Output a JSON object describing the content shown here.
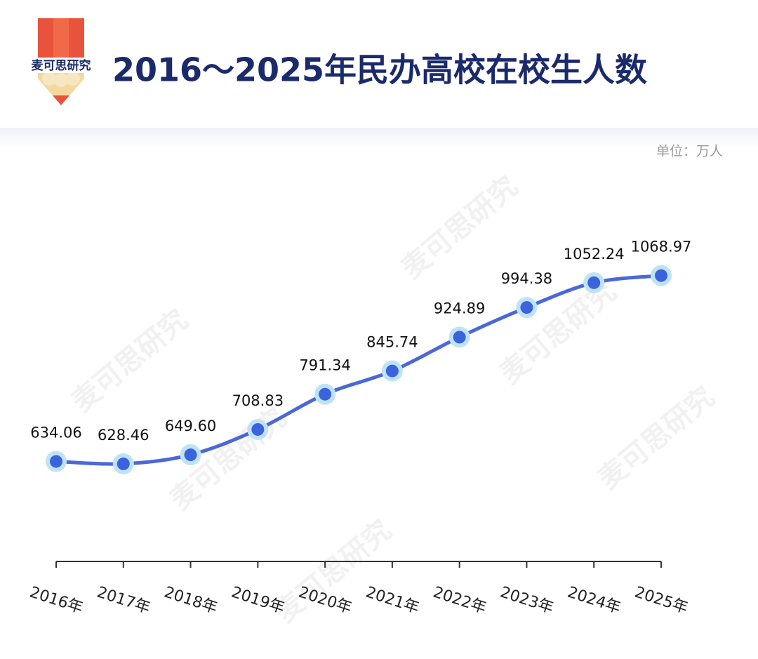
{
  "logo": "麦可思研究",
  "watermark": "麦可思研究",
  "chart_data": {
    "type": "line",
    "title": "2016～2025年民办高校在校生人数",
    "unit": "单位：万人",
    "categories": [
      "2016年",
      "2017年",
      "2018年",
      "2019年",
      "2020年",
      "2021年",
      "2022年",
      "2023年",
      "2024年",
      "2025年"
    ],
    "values": [
      634.06,
      628.46,
      649.6,
      708.83,
      791.34,
      845.74,
      924.89,
      994.38,
      1052.24,
      1068.97
    ],
    "value_labels": [
      "634.06",
      "628.46",
      "649.60",
      "708.83",
      "791.34",
      "845.74",
      "924.89",
      "994.38",
      "1052.24",
      "1068.97"
    ],
    "color": "#4a68d8",
    "ylim": [
      400,
      1300
    ]
  }
}
